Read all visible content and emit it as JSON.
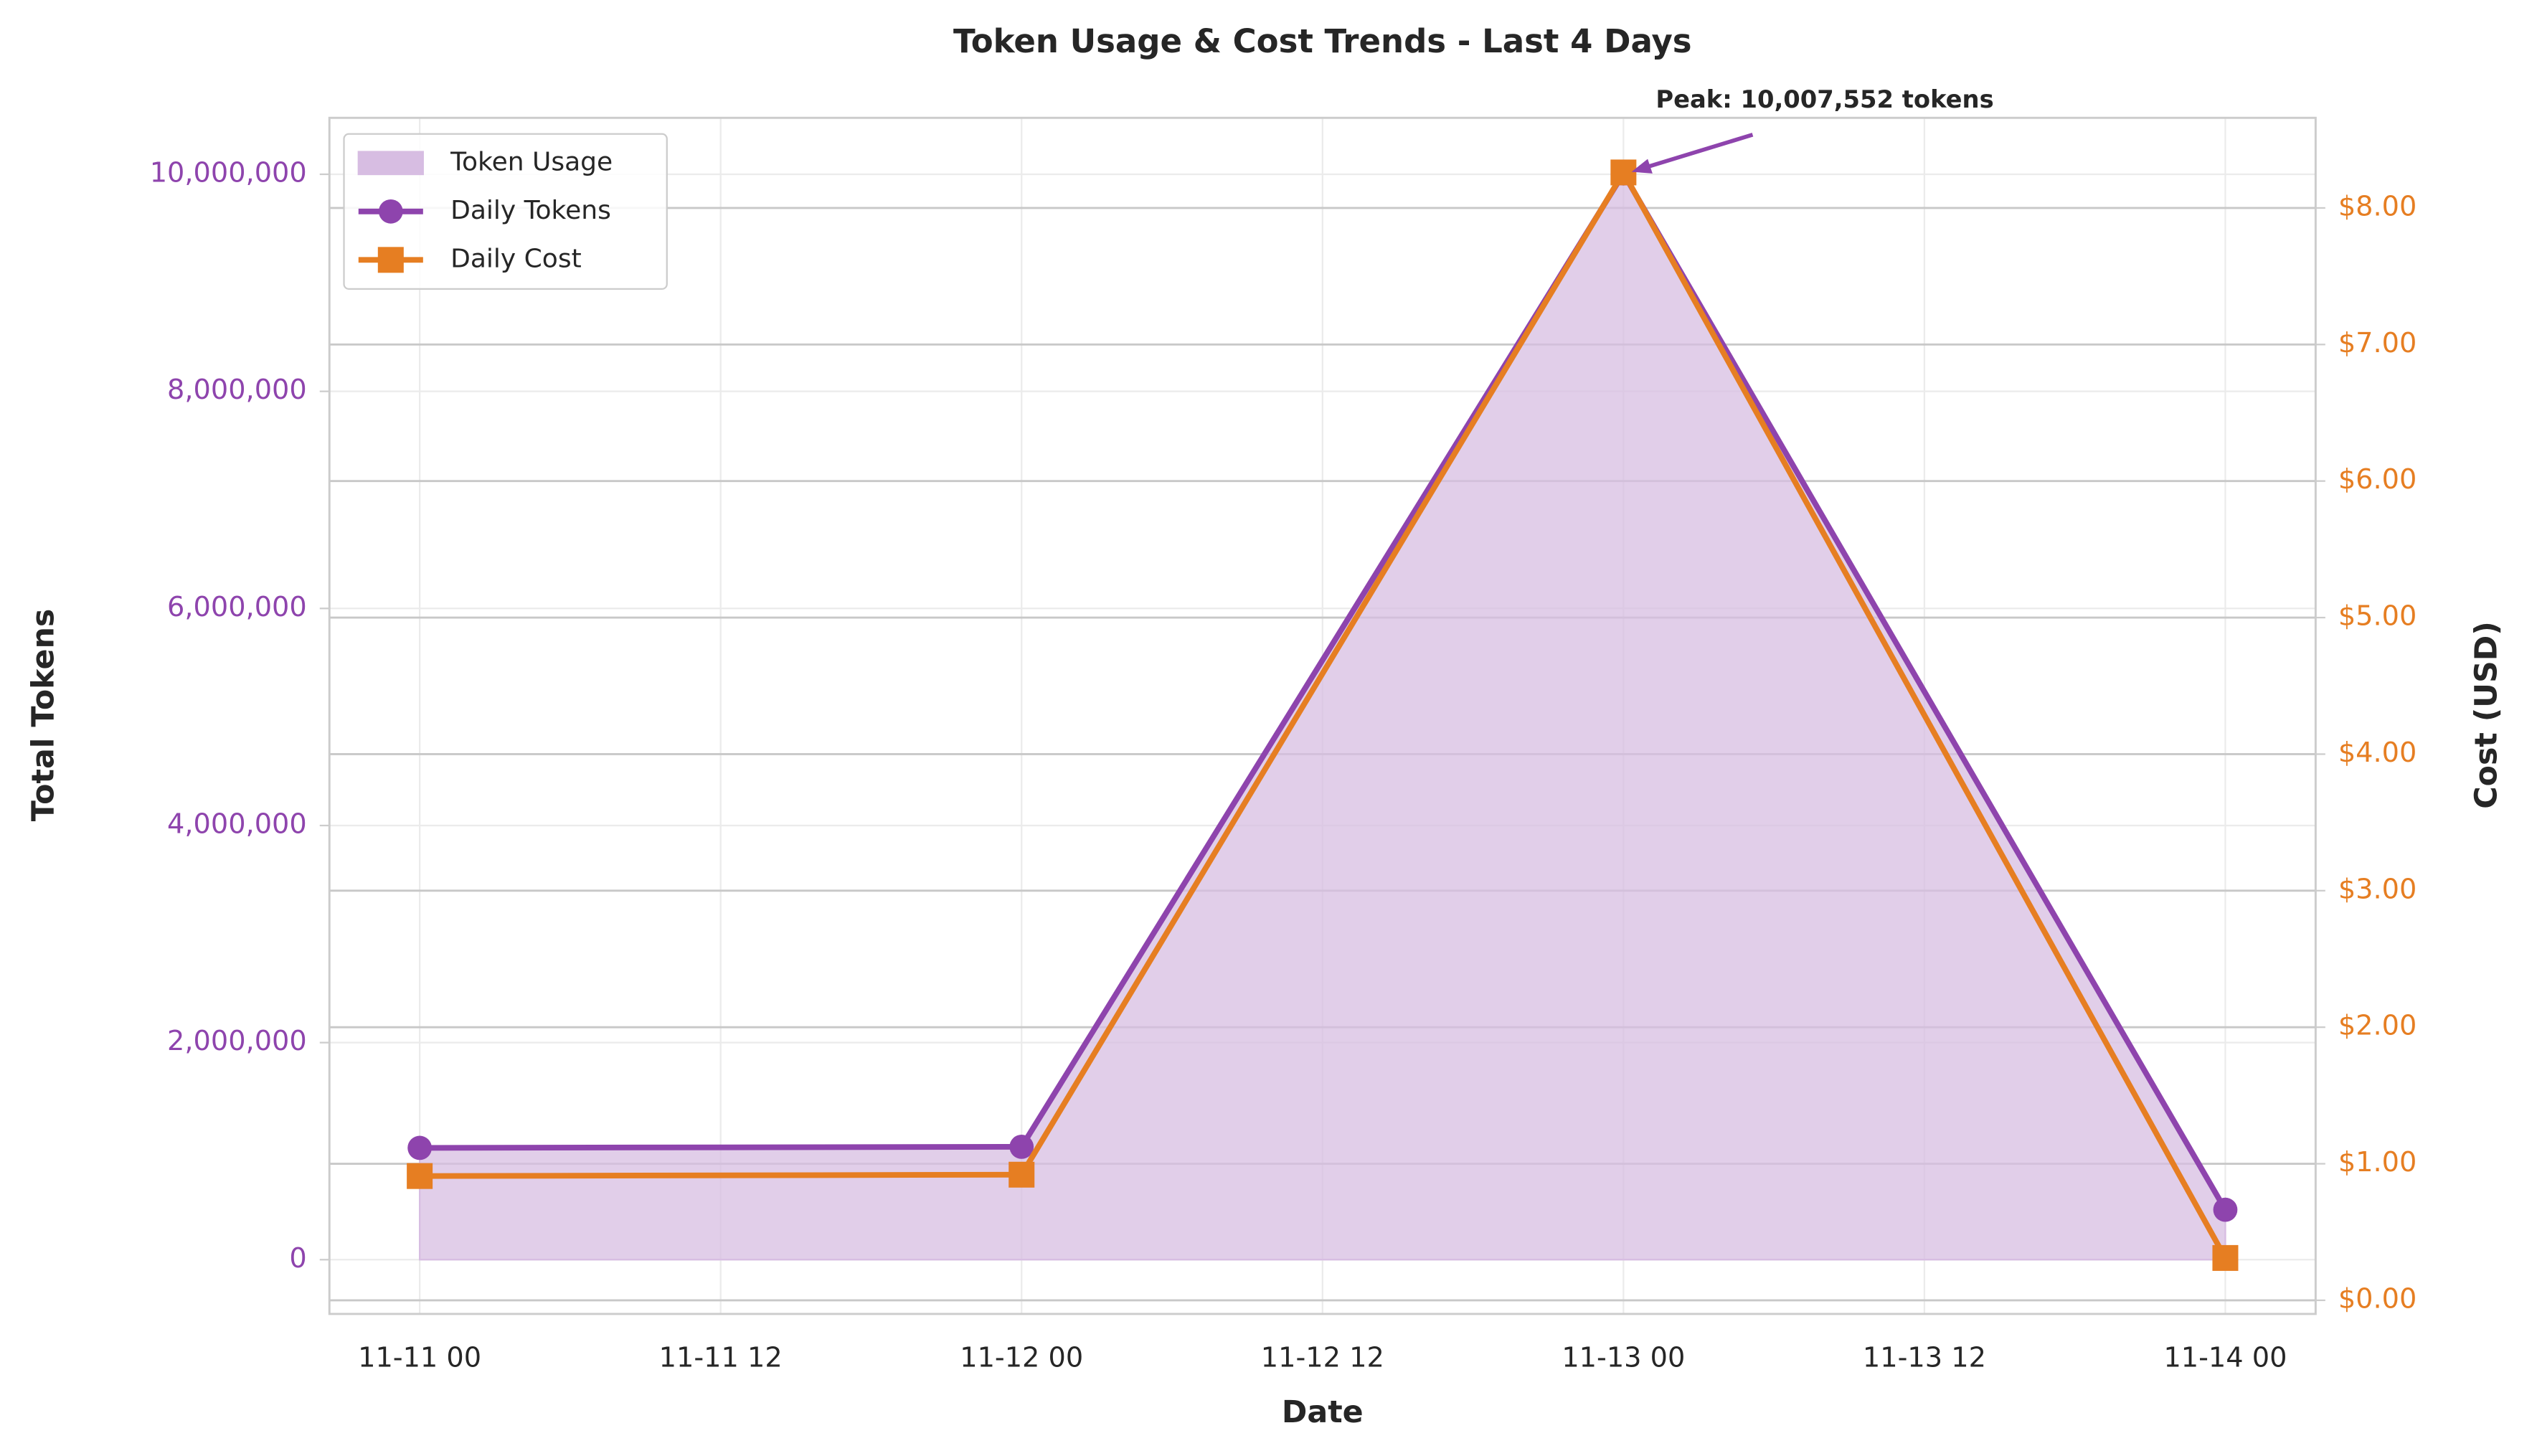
{
  "chart_data": {
    "type": "line",
    "title": "Token Usage & Cost Trends - Last 4 Days",
    "xlabel": "Date",
    "ylabel": "Total Tokens",
    "y2label": "Cost (USD)",
    "annotation": "Peak: 10,007,552 tokens",
    "x": [
      "11-11 00",
      "11-12 00",
      "11-13 00",
      "11-14 00"
    ],
    "xticks": [
      "11-11 00",
      "11-11 12",
      "11-12 00",
      "11-12 12",
      "11-13 00",
      "11-13 12",
      "11-14 00"
    ],
    "ylim": [
      -500000,
      10520000
    ],
    "yticks": [
      0,
      {
        "value": 2000000,
        "label": "2,000,000"
      },
      {
        "value": 4000000,
        "label": "4,000,000"
      },
      {
        "value": 6000000,
        "label": "6,000,000"
      },
      {
        "value": 8000000,
        "label": "8,000,000"
      },
      {
        "value": 10000000,
        "label": "10,000,000"
      }
    ],
    "y2lim": [
      -0.1,
      8.66
    ],
    "y2ticks": [
      {
        "value": 0,
        "label": "$0.00"
      },
      {
        "value": 1,
        "label": "$1.00"
      },
      {
        "value": 2,
        "label": "$2.00"
      },
      {
        "value": 3,
        "label": "$3.00"
      },
      {
        "value": 4,
        "label": "$4.00"
      },
      {
        "value": 5,
        "label": "$5.00"
      },
      {
        "value": 6,
        "label": "$6.00"
      },
      {
        "value": 7,
        "label": "$7.00"
      },
      {
        "value": 8,
        "label": "$8.00"
      }
    ],
    "grid": true,
    "legend": "upper left",
    "series": [
      {
        "name": "Token Usage",
        "kind": "area",
        "color": "#d7bde2",
        "values": [
          1030000,
          1040000,
          10007552,
          460000
        ]
      },
      {
        "name": "Daily Tokens",
        "kind": "line",
        "marker": "circle",
        "color": "#8e44ad",
        "values": [
          1030000,
          1040000,
          10007552,
          460000
        ]
      },
      {
        "name": "Daily Cost",
        "kind": "line",
        "marker": "square",
        "color": "#e67e22",
        "axis": "y2",
        "values": [
          0.91,
          0.92,
          8.26,
          0.31
        ]
      }
    ]
  }
}
